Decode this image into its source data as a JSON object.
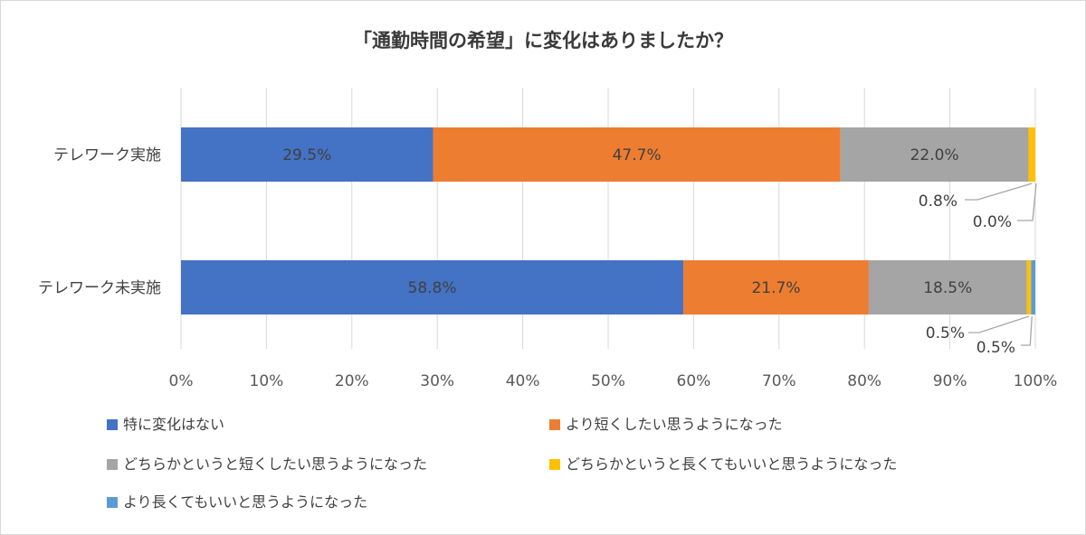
{
  "chart_data": {
    "type": "bar",
    "orientation": "horizontal",
    "stacked": "percent",
    "title": "「通勤時間の希望」に変化はありましたか？",
    "categories": [
      "テレワーク実施",
      "テレワーク未実施"
    ],
    "series": [
      {
        "name": "特に変化はない",
        "color": "#4472c4",
        "values": [
          29.5,
          58.8
        ],
        "labels": [
          "29.5%",
          "58.8%"
        ]
      },
      {
        "name": "より短くしたい思うようになった",
        "color": "#ed7d31",
        "values": [
          47.7,
          21.7
        ],
        "labels": [
          "47.7%",
          "21.7%"
        ]
      },
      {
        "name": "どちらかというと短くしたい思うようになった",
        "color": "#a5a5a5",
        "values": [
          22.0,
          18.5
        ],
        "labels": [
          "22.0%",
          "18.5%"
        ]
      },
      {
        "name": "どちらかというと長くてもいいと思うようになった",
        "color": "#ffc000",
        "values": [
          0.8,
          0.5
        ],
        "labels": [
          "0.8%",
          "0.5%"
        ]
      },
      {
        "name": "より長くてもいいと思うようになった",
        "color": "#5b9bd5",
        "values": [
          0.0,
          0.5
        ],
        "labels": [
          "0.0%",
          "0.5%"
        ]
      }
    ],
    "x_ticks": [
      "0%",
      "10%",
      "20%",
      "30%",
      "40%",
      "50%",
      "60%",
      "70%",
      "80%",
      "90%",
      "100%"
    ],
    "xlim": [
      0,
      100
    ],
    "grid": "vertical",
    "legend_position": "bottom"
  }
}
